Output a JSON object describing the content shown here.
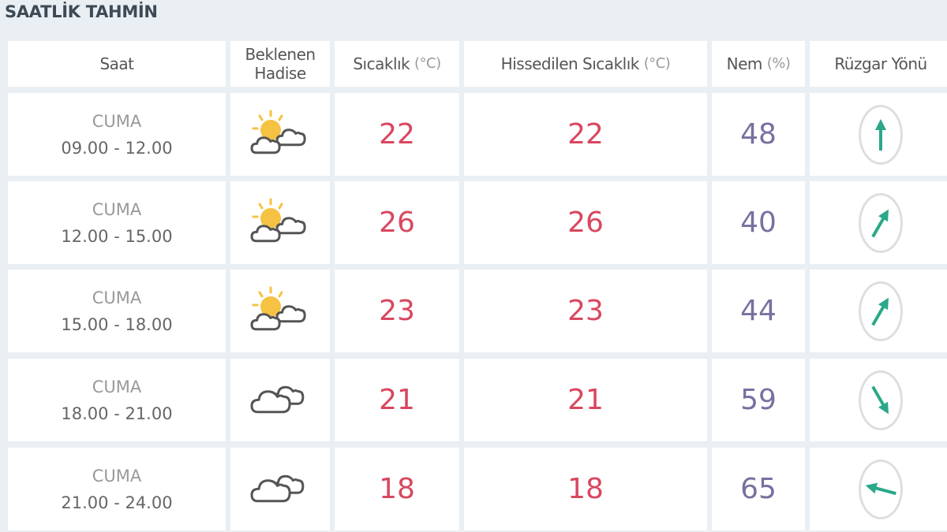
{
  "title": "SAATLİK TAHMİN",
  "headers": {
    "saat": "Saat",
    "hadise_line1": "Beklenen",
    "hadise_line2": "Hadise",
    "sicaklik": "Sıcaklık",
    "sicaklik_unit": "(°C)",
    "hissedilen": "Hissedilen Sıcaklık",
    "hissedilen_unit": "(°C)",
    "nem": "Nem",
    "nem_unit": "(%)",
    "ruzgar": "Rüzgar Yönü"
  },
  "colors": {
    "temp": "#d9475f",
    "humidity": "#7a6fa0",
    "wind_arrow": "#2aa889",
    "sun": "#f6c244"
  },
  "rows": [
    {
      "day": "CUMA",
      "time": "09.00 - 12.00",
      "icon": "partly-cloudy-icon",
      "temp": "22",
      "feels": "22",
      "humidity": "48",
      "wind_deg": 0
    },
    {
      "day": "CUMA",
      "time": "12.00 - 15.00",
      "icon": "partly-cloudy-icon",
      "temp": "26",
      "feels": "26",
      "humidity": "40",
      "wind_deg": 30
    },
    {
      "day": "CUMA",
      "time": "15.00 - 18.00",
      "icon": "partly-cloudy-icon",
      "temp": "23",
      "feels": "23",
      "humidity": "44",
      "wind_deg": 30
    },
    {
      "day": "CUMA",
      "time": "18.00 - 21.00",
      "icon": "cloudy-icon",
      "temp": "21",
      "feels": "21",
      "humidity": "59",
      "wind_deg": 150
    },
    {
      "day": "CUMA",
      "time": "21.00 - 24.00",
      "icon": "cloudy-icon",
      "temp": "18",
      "feels": "18",
      "humidity": "65",
      "wind_deg": 285
    }
  ]
}
